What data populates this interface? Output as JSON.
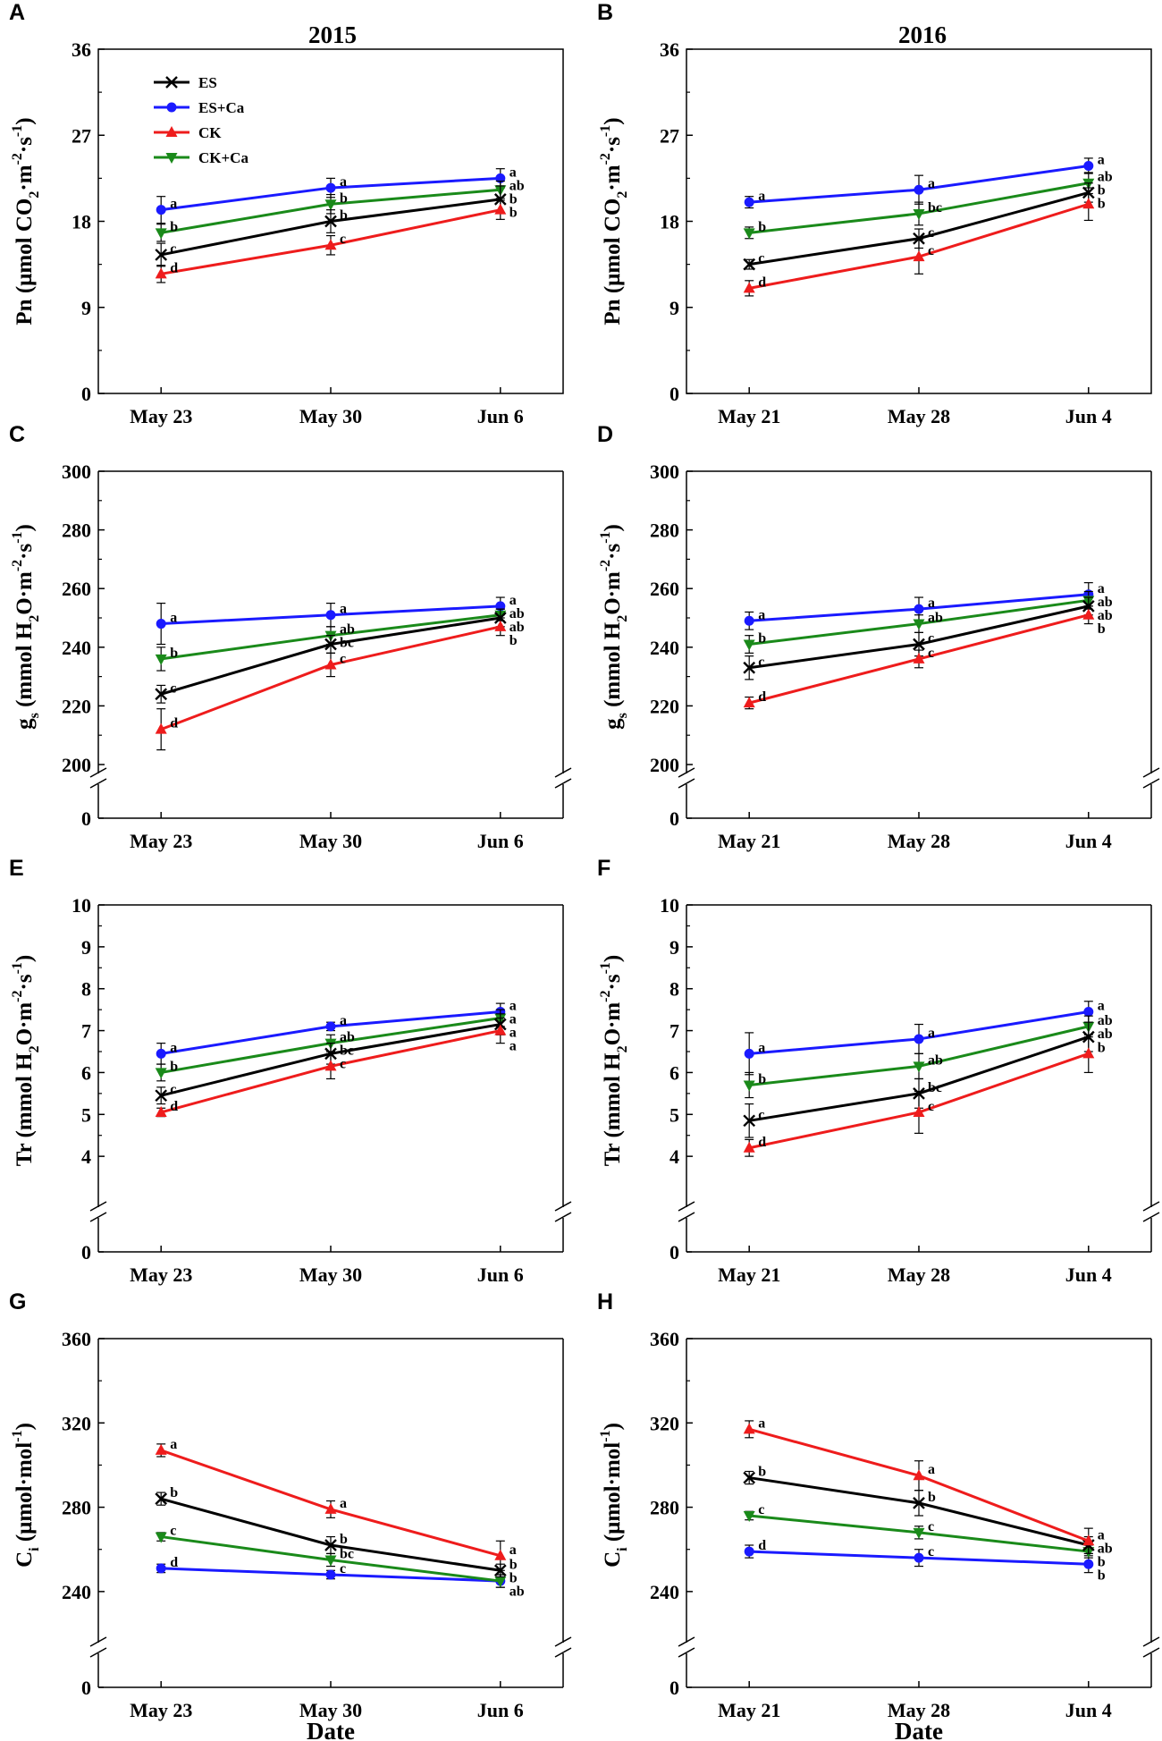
{
  "figure": {
    "column_titles": [
      "2015",
      "2016"
    ],
    "xlabel": "Date"
  },
  "legend": [
    {
      "name": "ES",
      "color": "#000000",
      "marker": "x"
    },
    {
      "name": "ES+Ca",
      "color": "#1a1aff",
      "marker": "circle"
    },
    {
      "name": "CK",
      "color": "#ee1c1c",
      "marker": "triangle-up"
    },
    {
      "name": "CK+Ca",
      "color": "#1a8a1a",
      "marker": "triangle-down"
    }
  ],
  "chart_data": [
    {
      "panel": "A",
      "type": "line",
      "title": "2015",
      "ylabel": {
        "main": "Pn (μmol CO",
        "parts": [
          [
            "Pn (μmol CO",
            ""
          ],
          [
            "2",
            "sub"
          ],
          [
            "·m",
            ""
          ],
          [
            "-2",
            "sup"
          ],
          [
            "·s",
            ""
          ],
          [
            "-1",
            "sup"
          ],
          [
            ")",
            ""
          ]
        ]
      },
      "categories": [
        "May 23",
        "May 30",
        "Jun 6"
      ],
      "ylim": [
        0,
        36
      ],
      "yticks": [
        0,
        9,
        18,
        27,
        36
      ],
      "axis_break": false,
      "series": [
        {
          "name": "ES",
          "values": [
            14.5,
            18.0,
            20.3
          ],
          "err": [
            1.2,
            1.2,
            1.4
          ],
          "letters": [
            "c",
            "b",
            "b"
          ]
        },
        {
          "name": "ES+Ca",
          "values": [
            19.2,
            21.5,
            22.5
          ],
          "err": [
            1.4,
            1.0,
            1.0
          ],
          "letters": [
            "a",
            "a",
            "a"
          ]
        },
        {
          "name": "CK",
          "values": [
            12.5,
            15.5,
            19.2
          ],
          "err": [
            0.9,
            1.0,
            1.0
          ],
          "letters": [
            "d",
            "c",
            "b"
          ]
        },
        {
          "name": "CK+Ca",
          "values": [
            16.8,
            19.8,
            21.3
          ],
          "err": [
            0.9,
            1.0,
            0.9
          ],
          "letters": [
            "b",
            "b",
            "ab"
          ]
        }
      ]
    },
    {
      "panel": "B",
      "type": "line",
      "title": "2016",
      "ylabel": {
        "parts": [
          [
            "Pn (μmol CO",
            ""
          ],
          [
            "2",
            "sub"
          ],
          [
            "·m",
            ""
          ],
          [
            "-2",
            "sup"
          ],
          [
            "·s",
            ""
          ],
          [
            "-1",
            "sup"
          ],
          [
            ")",
            ""
          ]
        ]
      },
      "categories": [
        "May 21",
        "May 28",
        "Jun 4"
      ],
      "ylim": [
        0,
        36
      ],
      "yticks": [
        0,
        9,
        18,
        27,
        36
      ],
      "axis_break": false,
      "series": [
        {
          "name": "ES",
          "values": [
            13.5,
            16.2,
            21.0
          ],
          "err": [
            0.5,
            1.0,
            1.0
          ],
          "letters": [
            "c",
            "c",
            "b"
          ]
        },
        {
          "name": "ES+Ca",
          "values": [
            20.0,
            21.3,
            23.8
          ],
          "err": [
            0.6,
            1.5,
            0.8
          ],
          "letters": [
            "a",
            "a",
            "a"
          ]
        },
        {
          "name": "CK",
          "values": [
            11.0,
            14.3,
            19.8
          ],
          "err": [
            0.8,
            1.8,
            1.7
          ],
          "letters": [
            "d",
            "c",
            "b"
          ]
        },
        {
          "name": "CK+Ca",
          "values": [
            16.8,
            18.8,
            22.0
          ],
          "err": [
            0.6,
            1.2,
            1.1
          ],
          "letters": [
            "b",
            "bc",
            "ab"
          ]
        }
      ]
    },
    {
      "panel": "C",
      "type": "line",
      "ylabel": {
        "parts": [
          [
            "g",
            ""
          ],
          [
            "s",
            "sub"
          ],
          [
            " (mmol H",
            ""
          ],
          [
            "2",
            "sub"
          ],
          [
            "O·m",
            ""
          ],
          [
            "-2",
            "sup"
          ],
          [
            "·s",
            ""
          ],
          [
            "-1",
            "sup"
          ],
          [
            ")",
            ""
          ]
        ]
      },
      "categories": [
        "May 23",
        "May 30",
        "Jun 6"
      ],
      "ylim": [
        200,
        300
      ],
      "yticks": [
        200,
        220,
        240,
        260,
        280,
        300
      ],
      "zero_label": "0",
      "axis_break": true,
      "series": [
        {
          "name": "ES",
          "values": [
            224,
            241,
            250
          ],
          "err": [
            3,
            3,
            3
          ],
          "letters": [
            "c",
            "bc",
            "ab"
          ]
        },
        {
          "name": "ES+Ca",
          "values": [
            248,
            251,
            254
          ],
          "err": [
            7,
            4,
            3
          ],
          "letters": [
            "a",
            "a",
            "a"
          ]
        },
        {
          "name": "CK",
          "values": [
            212,
            234,
            247
          ],
          "err": [
            7,
            4,
            3
          ],
          "letters": [
            "d",
            "c",
            "b"
          ]
        },
        {
          "name": "CK+Ca",
          "values": [
            236,
            244,
            251
          ],
          "err": [
            4,
            3,
            2
          ],
          "letters": [
            "b",
            "ab",
            "ab"
          ]
        }
      ]
    },
    {
      "panel": "D",
      "type": "line",
      "ylabel": {
        "parts": [
          [
            "g",
            ""
          ],
          [
            "s",
            "sub"
          ],
          [
            " (mmol H",
            ""
          ],
          [
            "2",
            "sub"
          ],
          [
            "O·m",
            ""
          ],
          [
            "-2",
            "sup"
          ],
          [
            "·s",
            ""
          ],
          [
            "-1",
            "sup"
          ],
          [
            ")",
            ""
          ]
        ]
      },
      "categories": [
        "May 21",
        "May 28",
        "Jun 4"
      ],
      "ylim": [
        200,
        300
      ],
      "yticks": [
        200,
        220,
        240,
        260,
        280,
        300
      ],
      "zero_label": "0",
      "axis_break": true,
      "series": [
        {
          "name": "ES",
          "values": [
            233,
            241,
            254
          ],
          "err": [
            4,
            4,
            3
          ],
          "letters": [
            "c",
            "c",
            "ab"
          ]
        },
        {
          "name": "ES+Ca",
          "values": [
            249,
            253,
            258
          ],
          "err": [
            3,
            4,
            4
          ],
          "letters": [
            "a",
            "a",
            "a"
          ]
        },
        {
          "name": "CK",
          "values": [
            221,
            236,
            251
          ],
          "err": [
            2,
            3,
            3
          ],
          "letters": [
            "d",
            "c",
            "b"
          ]
        },
        {
          "name": "CK+Ca",
          "values": [
            241,
            248,
            256
          ],
          "err": [
            3,
            3,
            3
          ],
          "letters": [
            "b",
            "ab",
            "ab"
          ]
        }
      ]
    },
    {
      "panel": "E",
      "type": "line",
      "ylabel": {
        "parts": [
          [
            "Tr (mmol H",
            ""
          ],
          [
            "2",
            "sub"
          ],
          [
            "O·m",
            ""
          ],
          [
            "-2",
            "sup"
          ],
          [
            "·s",
            ""
          ],
          [
            "-1",
            "sup"
          ],
          [
            ")",
            ""
          ]
        ]
      },
      "categories": [
        "May 23",
        "May 30",
        "Jun 6"
      ],
      "ylim": [
        3,
        10
      ],
      "yticks": [
        4,
        5,
        6,
        7,
        8,
        9,
        10
      ],
      "zero_label": "0",
      "axis_break": true,
      "series": [
        {
          "name": "ES",
          "values": [
            5.45,
            6.45,
            7.15
          ],
          "err": [
            0.2,
            0.25,
            0.25
          ],
          "letters": [
            "c",
            "bc",
            "a"
          ]
        },
        {
          "name": "ES+Ca",
          "values": [
            6.45,
            7.1,
            7.45
          ],
          "err": [
            0.25,
            0.1,
            0.2
          ],
          "letters": [
            "a",
            "a",
            "a"
          ]
        },
        {
          "name": "CK",
          "values": [
            5.05,
            6.15,
            7.0
          ],
          "err": [
            0.1,
            0.3,
            0.3
          ],
          "letters": [
            "d",
            "c",
            "a"
          ]
        },
        {
          "name": "CK+Ca",
          "values": [
            6.0,
            6.7,
            7.3
          ],
          "err": [
            0.2,
            0.2,
            0.2
          ],
          "letters": [
            "b",
            "ab",
            "a"
          ]
        }
      ]
    },
    {
      "panel": "F",
      "type": "line",
      "ylabel": {
        "parts": [
          [
            "Tr (mmol H",
            ""
          ],
          [
            "2",
            "sub"
          ],
          [
            "O·m",
            ""
          ],
          [
            "-2",
            "sup"
          ],
          [
            "·s",
            ""
          ],
          [
            "-1",
            "sup"
          ],
          [
            ")",
            ""
          ]
        ]
      },
      "categories": [
        "May 21",
        "May 28",
        "Jun 4"
      ],
      "ylim": [
        3,
        10
      ],
      "yticks": [
        4,
        5,
        6,
        7,
        8,
        9,
        10
      ],
      "zero_label": "0",
      "axis_break": true,
      "series": [
        {
          "name": "ES",
          "values": [
            4.85,
            5.5,
            6.85
          ],
          "err": [
            0.4,
            0.35,
            0.35
          ],
          "letters": [
            "c",
            "bc",
            "ab"
          ]
        },
        {
          "name": "ES+Ca",
          "values": [
            6.45,
            6.8,
            7.45
          ],
          "err": [
            0.5,
            0.35,
            0.25
          ],
          "letters": [
            "a",
            "a",
            "a"
          ]
        },
        {
          "name": "CK",
          "values": [
            4.2,
            5.05,
            6.45
          ],
          "err": [
            0.2,
            0.5,
            0.45
          ],
          "letters": [
            "d",
            "c",
            "b"
          ]
        },
        {
          "name": "CK+Ca",
          "values": [
            5.7,
            6.15,
            7.1
          ],
          "err": [
            0.3,
            0.3,
            0.25
          ],
          "letters": [
            "b",
            "ab",
            "ab"
          ]
        }
      ]
    },
    {
      "panel": "G",
      "type": "line",
      "ylabel": {
        "parts": [
          [
            "C",
            ""
          ],
          [
            "i",
            "sub"
          ],
          [
            " (μmol·mol",
            ""
          ],
          [
            "-1",
            "sup"
          ],
          [
            ")",
            ""
          ]
        ]
      },
      "categories": [
        "May 23",
        "May 30",
        "Jun 6"
      ],
      "ylim": [
        220,
        360
      ],
      "yticks": [
        240,
        280,
        320,
        360
      ],
      "zero_label": "0",
      "axis_break": true,
      "series": [
        {
          "name": "ES",
          "values": [
            284,
            262,
            250
          ],
          "err": [
            3,
            4,
            3
          ],
          "letters": [
            "b",
            "b",
            "b"
          ]
        },
        {
          "name": "ES+Ca",
          "values": [
            251,
            248,
            245
          ],
          "err": [
            2,
            2,
            3
          ],
          "letters": [
            "d",
            "c",
            "b"
          ]
        },
        {
          "name": "CK",
          "values": [
            307,
            279,
            257
          ],
          "err": [
            3,
            4,
            7
          ],
          "letters": [
            "a",
            "a",
            "a"
          ]
        },
        {
          "name": "CK+Ca",
          "values": [
            266,
            255,
            245
          ],
          "err": [
            2,
            3,
            3
          ],
          "letters": [
            "c",
            "bc",
            "ab"
          ]
        }
      ],
      "xlabel": "Date"
    },
    {
      "panel": "H",
      "type": "line",
      "ylabel": {
        "parts": [
          [
            "C",
            ""
          ],
          [
            "i",
            "sub"
          ],
          [
            " (μmol·mol",
            ""
          ],
          [
            "-1",
            "sup"
          ],
          [
            ")",
            ""
          ]
        ]
      },
      "categories": [
        "May 21",
        "May 28",
        "Jun 4"
      ],
      "ylim": [
        220,
        360
      ],
      "yticks": [
        240,
        280,
        320,
        360
      ],
      "zero_label": "0",
      "axis_break": true,
      "series": [
        {
          "name": "ES",
          "values": [
            294,
            282,
            262
          ],
          "err": [
            3,
            6,
            4
          ],
          "letters": [
            "b",
            "b",
            "ab"
          ]
        },
        {
          "name": "ES+Ca",
          "values": [
            259,
            256,
            253
          ],
          "err": [
            3,
            4,
            4
          ],
          "letters": [
            "d",
            "c",
            "b"
          ]
        },
        {
          "name": "CK",
          "values": [
            317,
            295,
            264
          ],
          "err": [
            4,
            7,
            6
          ],
          "letters": [
            "a",
            "a",
            "a"
          ]
        },
        {
          "name": "CK+Ca",
          "values": [
            276,
            268,
            259
          ],
          "err": [
            2,
            3,
            3
          ],
          "letters": [
            "c",
            "c",
            "b"
          ]
        }
      ],
      "xlabel": "Date"
    }
  ]
}
